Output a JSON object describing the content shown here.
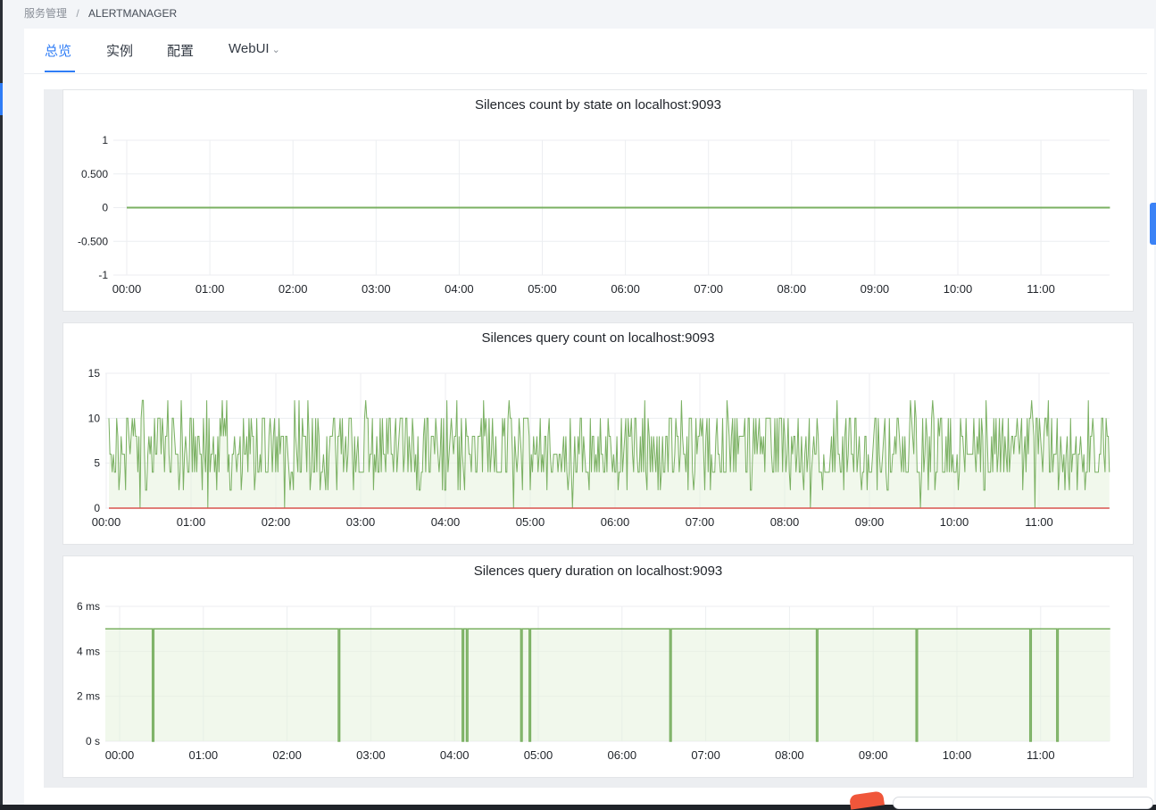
{
  "breadcrumb": {
    "parent": "服务管理",
    "separator": "/",
    "current": "ALERTMANAGER"
  },
  "tabs": [
    {
      "label": "总览",
      "active": true
    },
    {
      "label": "实例",
      "active": false
    },
    {
      "label": "配置",
      "active": false
    },
    {
      "label": "WebUI",
      "active": false,
      "dropdown": true
    }
  ],
  "colors": {
    "accent": "#2f7df6",
    "series_green": "#7ab062",
    "fill_green": "#e6f3dd",
    "series_red": "#d9534f",
    "grid": "#eceef1",
    "axis_text": "#1f2329"
  },
  "chart_data": [
    {
      "type": "line",
      "title": "Silences count by state on localhost:9093",
      "x_tick_labels": [
        "00:00",
        "01:00",
        "02:00",
        "03:00",
        "04:00",
        "05:00",
        "06:00",
        "07:00",
        "08:00",
        "09:00",
        "10:00",
        "11:00"
      ],
      "y_tick_labels": [
        "1",
        "0.500",
        "0",
        "-0.500",
        "-1"
      ],
      "y_ticks": [
        1,
        0.5,
        0,
        -0.5,
        -1
      ],
      "ylim": [
        -1,
        1
      ],
      "x_range_hours": [
        0,
        11.83
      ],
      "series": [
        {
          "points": [
            [
              0,
              0
            ],
            [
              11.83,
              0
            ]
          ]
        }
      ]
    },
    {
      "type": "area",
      "title": "Silences query count on localhost:9093",
      "x_tick_labels": [
        "00:00",
        "01:00",
        "02:00",
        "03:00",
        "04:00",
        "05:00",
        "06:00",
        "07:00",
        "08:00",
        "09:00",
        "10:00",
        "11:00"
      ],
      "y_tick_labels": [
        "15",
        "10",
        "5",
        "0"
      ],
      "y_ticks": [
        15,
        10,
        5,
        0
      ],
      "ylim": [
        0,
        15
      ],
      "x_range_hours": [
        0,
        11.83
      ],
      "series": [
        {
          "values_range": [
            2,
            12
          ],
          "typical": [
            4,
            6,
            8,
            10
          ],
          "dips_to_zero_at_hours": [
            0.4,
            1.2,
            2.1,
            4.8,
            5.5,
            8.3,
            9.6,
            10.95
          ]
        },
        {
          "points": [
            [
              0,
              0
            ],
            [
              11.83,
              0
            ]
          ]
        }
      ]
    },
    {
      "type": "area",
      "title": "Silences query duration on localhost:9093",
      "x_tick_labels": [
        "00:00",
        "01:00",
        "02:00",
        "03:00",
        "04:00",
        "05:00",
        "06:00",
        "07:00",
        "08:00",
        "09:00",
        "10:00",
        "11:00"
      ],
      "y_tick_labels": [
        "6 ms",
        "4 ms",
        "2 ms",
        "0 s"
      ],
      "y_ticks": [
        6,
        4,
        2,
        0
      ],
      "ylim": [
        0,
        6
      ],
      "units": "ms",
      "x_range_hours": [
        0,
        11.83
      ],
      "series": [
        {
          "baseline": 5,
          "dips_to_zero_at_hours": [
            0.4,
            2.62,
            4.1,
            4.15,
            4.8,
            4.9,
            6.58,
            8.33,
            9.52,
            10.88,
            11.2
          ]
        }
      ]
    }
  ]
}
